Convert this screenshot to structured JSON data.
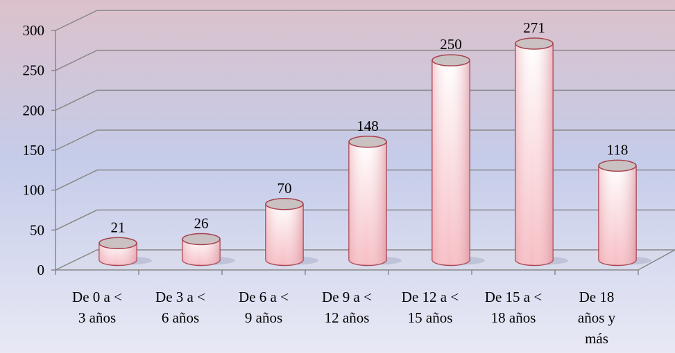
{
  "chart_data": {
    "type": "bar",
    "categories": [
      [
        "De 0 a <",
        "3 años"
      ],
      [
        "De 3 a <",
        "6 años"
      ],
      [
        "De 6 a <",
        "9 años"
      ],
      [
        "De 9 a <",
        "12 años"
      ],
      [
        "De 12 a <",
        "15 años"
      ],
      [
        "De 15 a <",
        "18 años"
      ],
      [
        "De 18",
        "años y",
        "más"
      ]
    ],
    "values": [
      21,
      26,
      70,
      148,
      250,
      271,
      118
    ],
    "color": "#f4b8c0",
    "ylim": [
      0,
      300
    ],
    "yticks": [
      0,
      50,
      100,
      150,
      200,
      250,
      300
    ],
    "grid": true
  }
}
